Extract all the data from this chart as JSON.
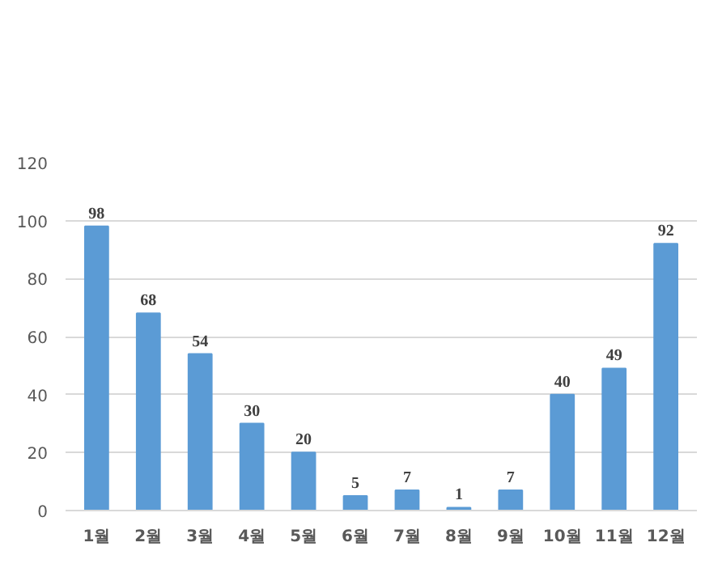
{
  "chart_data": {
    "type": "bar",
    "categories": [
      "1월",
      "2월",
      "3월",
      "4월",
      "5월",
      "6월",
      "7월",
      "8월",
      "9월",
      "10월",
      "11월",
      "12월"
    ],
    "values": [
      98,
      68,
      54,
      30,
      20,
      5,
      7,
      1,
      7,
      40,
      49,
      92
    ],
    "color": "#5b9bd5",
    "ylim": [
      0,
      120
    ],
    "yticks": [
      0,
      20,
      40,
      60,
      80,
      100,
      120
    ],
    "grid": "y",
    "data_labels": true
  }
}
